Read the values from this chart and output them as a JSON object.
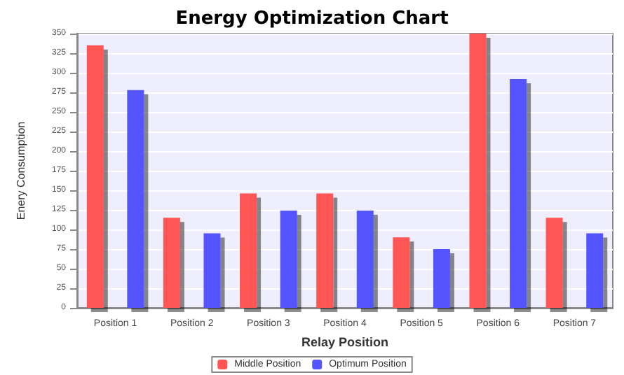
{
  "chart_data": {
    "type": "bar",
    "title": "Energy Optimization Chart",
    "xlabel": "Relay Position",
    "ylabel": "Enery Consumption",
    "categories": [
      "Position 1",
      "Position 2",
      "Position 3",
      "Position 4",
      "Position 5",
      "Position 6",
      "Position 7"
    ],
    "series": [
      {
        "name": "Middle Position",
        "color": "#ff5555",
        "values": [
          335,
          115,
          146,
          146,
          90,
          350,
          115
        ]
      },
      {
        "name": "Optimum Position",
        "color": "#5555ff",
        "values": [
          278,
          95,
          124,
          124,
          75,
          292,
          95
        ]
      }
    ],
    "ylim": [
      0,
      350
    ],
    "yticks": [
      0,
      25,
      50,
      75,
      100,
      125,
      150,
      175,
      200,
      225,
      250,
      275,
      300,
      325,
      350
    ],
    "grid": "y",
    "legend": "bottom"
  }
}
